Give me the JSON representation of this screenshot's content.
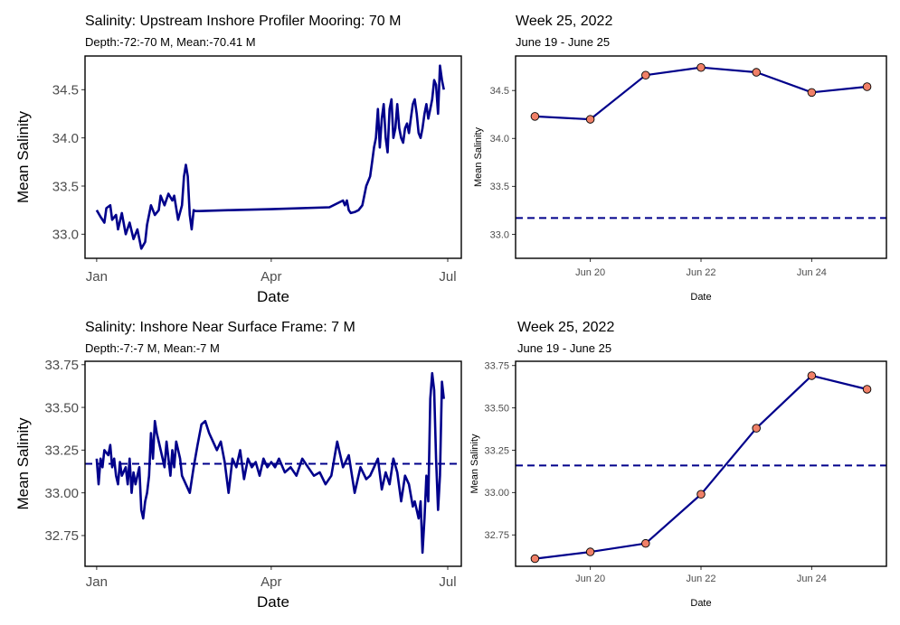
{
  "chart_data": [
    {
      "type": "line",
      "title": "Salinity: Upstream Inshore Profiler Mooring: 70 M",
      "subtitle": "Depth:-72:-70 M, Mean:-70.41 M",
      "xlabel": "Date",
      "ylabel": "Mean Salinity",
      "xticks": [
        {
          "label": "Jan",
          "x": "2022-01-01"
        },
        {
          "label": "Apr",
          "x": "2022-04-01"
        },
        {
          "label": "Jul",
          "x": "2022-07-01"
        }
      ],
      "yticks": [
        33.0,
        33.5,
        34.0,
        34.5
      ],
      "xlim": [
        "2021-12-26",
        "2022-07-08"
      ],
      "ylim": [
        32.75,
        34.85
      ],
      "line_color": "#00008B",
      "series": [
        {
          "x": [
            "2022-01-01",
            "2022-01-03",
            "2022-01-05",
            "2022-01-06",
            "2022-01-08",
            "2022-01-09",
            "2022-01-11",
            "2022-01-12",
            "2022-01-14",
            "2022-01-16",
            "2022-01-18",
            "2022-01-20",
            "2022-01-22",
            "2022-01-24",
            "2022-01-26",
            "2022-01-27",
            "2022-01-29",
            "2022-01-31",
            "2022-02-02",
            "2022-02-03",
            "2022-02-05",
            "2022-02-07",
            "2022-02-09",
            "2022-02-10",
            "2022-02-12",
            "2022-02-14",
            "2022-02-15",
            "2022-02-16",
            "2022-02-17",
            "2022-02-18",
            "2022-02-19",
            "2022-02-20",
            "2022-02-21",
            "2022-02-23",
            "2022-03-10",
            "2022-04-01",
            "2022-05-01",
            "2022-05-08",
            "2022-05-09",
            "2022-05-10",
            "2022-05-11",
            "2022-05-12",
            "2022-05-14",
            "2022-05-16",
            "2022-05-18",
            "2022-05-20",
            "2022-05-22",
            "2022-05-23",
            "2022-05-24",
            "2022-05-25",
            "2022-05-26",
            "2022-05-27",
            "2022-05-28",
            "2022-05-29",
            "2022-05-30",
            "2022-05-31",
            "2022-06-01",
            "2022-06-02",
            "2022-06-03",
            "2022-06-04",
            "2022-06-05",
            "2022-06-06",
            "2022-06-07",
            "2022-06-08",
            "2022-06-09",
            "2022-06-10",
            "2022-06-11",
            "2022-06-12",
            "2022-06-13",
            "2022-06-14",
            "2022-06-15",
            "2022-06-16",
            "2022-06-17",
            "2022-06-18",
            "2022-06-19",
            "2022-06-20",
            "2022-06-21",
            "2022-06-22",
            "2022-06-23",
            "2022-06-24",
            "2022-06-25",
            "2022-06-26",
            "2022-06-27",
            "2022-06-28",
            "2022-06-29"
          ],
          "y": [
            33.25,
            33.18,
            33.12,
            33.27,
            33.3,
            33.15,
            33.2,
            33.05,
            33.22,
            33.0,
            33.12,
            32.95,
            33.05,
            32.85,
            32.92,
            33.1,
            33.3,
            33.2,
            33.25,
            33.4,
            33.3,
            33.42,
            33.35,
            33.4,
            33.15,
            33.3,
            33.6,
            33.72,
            33.6,
            33.2,
            33.05,
            33.25,
            33.24,
            33.24,
            33.25,
            33.26,
            33.28,
            33.35,
            33.3,
            33.35,
            33.25,
            33.22,
            33.23,
            33.25,
            33.3,
            33.5,
            33.6,
            33.75,
            33.9,
            34.0,
            34.3,
            33.9,
            34.2,
            34.35,
            34.0,
            33.85,
            34.3,
            34.4,
            34.0,
            34.1,
            34.35,
            34.1,
            34.0,
            33.95,
            34.1,
            34.15,
            34.05,
            34.2,
            34.35,
            34.4,
            34.25,
            34.05,
            34.0,
            34.1,
            34.25,
            34.35,
            34.2,
            34.3,
            34.4,
            34.6,
            34.55,
            34.25,
            34.75,
            34.6,
            34.5
          ]
        }
      ]
    },
    {
      "type": "line",
      "title": "Week 25, 2022",
      "subtitle": "June 19 - June 25",
      "xlabel": "Date",
      "ylabel": "Mean Salinity",
      "xticks": [
        {
          "label": "Jun 20",
          "x": "2022-06-20"
        },
        {
          "label": "Jun 22",
          "x": "2022-06-22"
        },
        {
          "label": "Jun 24",
          "x": "2022-06-24"
        }
      ],
      "yticks": [
        33.0,
        33.5,
        34.0,
        34.5
      ],
      "xlim": [
        "2022-06-18.65",
        "2022-06-25.35"
      ],
      "ylim": [
        32.75,
        34.86
      ],
      "reference_line": {
        "y": 33.17,
        "style": "dashed",
        "color": "#00008B"
      },
      "line_color": "#00008B",
      "marker_color": "#F08068",
      "series": [
        {
          "x": [
            "2022-06-19",
            "2022-06-20",
            "2022-06-21",
            "2022-06-22",
            "2022-06-23",
            "2022-06-24",
            "2022-06-25"
          ],
          "y": [
            34.23,
            34.2,
            34.66,
            34.74,
            34.69,
            34.48,
            34.54
          ]
        }
      ]
    },
    {
      "type": "line",
      "title": "Salinity: Inshore Near Surface Frame: 7 M",
      "subtitle": "Depth:-7:-7 M, Mean:-7 M",
      "xlabel": "Date",
      "ylabel": "Mean Salinity",
      "xticks": [
        {
          "label": "Jan",
          "x": "2022-01-01"
        },
        {
          "label": "Apr",
          "x": "2022-04-01"
        },
        {
          "label": "Jul",
          "x": "2022-07-01"
        }
      ],
      "yticks": [
        32.75,
        33.0,
        33.25,
        33.5,
        33.75
      ],
      "xlim": [
        "2021-12-26",
        "2022-07-08"
      ],
      "ylim": [
        32.57,
        33.77
      ],
      "reference_line": {
        "y": 33.17,
        "style": "dashed",
        "color": "#00008B"
      },
      "line_color": "#00008B",
      "series": [
        {
          "x": [
            "2022-01-01",
            "2022-01-02",
            "2022-01-03",
            "2022-01-04",
            "2022-01-05",
            "2022-01-07",
            "2022-01-08",
            "2022-01-09",
            "2022-01-10",
            "2022-01-11",
            "2022-01-12",
            "2022-01-13",
            "2022-01-14",
            "2022-01-16",
            "2022-01-17",
            "2022-01-18",
            "2022-01-19",
            "2022-01-20",
            "2022-01-21",
            "2022-01-23",
            "2022-01-24",
            "2022-01-25",
            "2022-01-26",
            "2022-01-27",
            "2022-01-28",
            "2022-01-29",
            "2022-01-30",
            "2022-01-31",
            "2022-02-01",
            "2022-02-02",
            "2022-02-04",
            "2022-02-05",
            "2022-02-06",
            "2022-02-08",
            "2022-02-09",
            "2022-02-10",
            "2022-02-11",
            "2022-02-13",
            "2022-02-14",
            "2022-02-16",
            "2022-02-18",
            "2022-02-20",
            "2022-02-22",
            "2022-02-24",
            "2022-02-26",
            "2022-02-28",
            "2022-03-02",
            "2022-03-04",
            "2022-03-06",
            "2022-03-08",
            "2022-03-10",
            "2022-03-12",
            "2022-03-14",
            "2022-03-16",
            "2022-03-18",
            "2022-03-20",
            "2022-03-22",
            "2022-03-24",
            "2022-03-26",
            "2022-03-28",
            "2022-03-30",
            "2022-04-01",
            "2022-04-03",
            "2022-04-05",
            "2022-04-08",
            "2022-04-11",
            "2022-04-14",
            "2022-04-17",
            "2022-04-20",
            "2022-04-23",
            "2022-04-26",
            "2022-04-29",
            "2022-05-02",
            "2022-05-05",
            "2022-05-08",
            "2022-05-11",
            "2022-05-14",
            "2022-05-17",
            "2022-05-20",
            "2022-05-22",
            "2022-05-24",
            "2022-05-26",
            "2022-05-28",
            "2022-05-30",
            "2022-06-01",
            "2022-06-03",
            "2022-06-05",
            "2022-06-07",
            "2022-06-09",
            "2022-06-11",
            "2022-06-13",
            "2022-06-14",
            "2022-06-15",
            "2022-06-16",
            "2022-06-17",
            "2022-06-18",
            "2022-06-19",
            "2022-06-20",
            "2022-06-21",
            "2022-06-22",
            "2022-06-23",
            "2022-06-24",
            "2022-06-25",
            "2022-06-26",
            "2022-06-27",
            "2022-06-28",
            "2022-06-29"
          ],
          "y": [
            33.2,
            33.05,
            33.2,
            33.15,
            33.25,
            33.22,
            33.28,
            33.15,
            33.2,
            33.1,
            33.05,
            33.18,
            33.1,
            33.15,
            33.05,
            33.2,
            33.0,
            33.12,
            33.05,
            33.15,
            32.9,
            32.85,
            32.95,
            33.0,
            33.1,
            33.35,
            33.2,
            33.42,
            33.35,
            33.3,
            33.2,
            33.15,
            33.3,
            33.1,
            33.25,
            33.15,
            33.3,
            33.2,
            33.1,
            33.05,
            33.0,
            33.15,
            33.28,
            33.4,
            33.42,
            33.35,
            33.3,
            33.25,
            33.3,
            33.18,
            33.0,
            33.2,
            33.15,
            33.25,
            33.08,
            33.2,
            33.15,
            33.18,
            33.1,
            33.2,
            33.15,
            33.18,
            33.15,
            33.2,
            33.12,
            33.15,
            33.1,
            33.2,
            33.15,
            33.1,
            33.12,
            33.05,
            33.1,
            33.3,
            33.15,
            33.22,
            33.0,
            33.15,
            33.08,
            33.1,
            33.15,
            33.2,
            33.02,
            33.12,
            33.05,
            33.2,
            33.12,
            32.95,
            33.1,
            33.05,
            32.92,
            32.95,
            32.9,
            32.85,
            32.95,
            32.65,
            32.85,
            33.1,
            32.95,
            33.55,
            33.7,
            33.6,
            33.2,
            32.9,
            33.1,
            33.65,
            33.55
          ]
        }
      ]
    },
    {
      "type": "line",
      "title": "Week 25, 2022",
      "subtitle": "June 19 - June 25",
      "xlabel": "Date",
      "ylabel": "Mean Salinity",
      "xticks": [
        {
          "label": "Jun 20",
          "x": "2022-06-20"
        },
        {
          "label": "Jun 22",
          "x": "2022-06-22"
        },
        {
          "label": "Jun 24",
          "x": "2022-06-24"
        }
      ],
      "yticks": [
        32.75,
        33.0,
        33.25,
        33.5,
        33.75
      ],
      "xlim": [
        "2022-06-18.65",
        "2022-06-25.35"
      ],
      "ylim": [
        32.565,
        33.775
      ],
      "reference_line": {
        "y": 33.16,
        "style": "dashed",
        "color": "#00008B"
      },
      "line_color": "#00008B",
      "marker_color": "#F08068",
      "series": [
        {
          "x": [
            "2022-06-19",
            "2022-06-20",
            "2022-06-21",
            "2022-06-22",
            "2022-06-23",
            "2022-06-24",
            "2022-06-25"
          ],
          "y": [
            32.61,
            32.65,
            32.7,
            32.99,
            33.38,
            33.69,
            33.61
          ]
        }
      ]
    }
  ]
}
